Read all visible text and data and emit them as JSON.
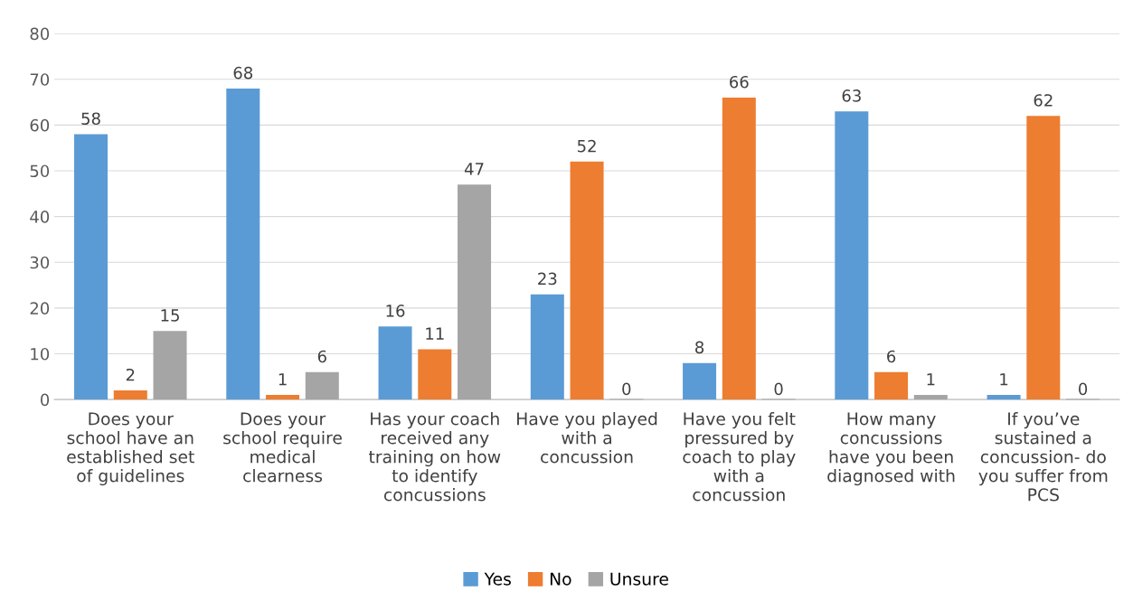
{
  "chart_data": {
    "type": "bar",
    "categories": [
      "Does your\nschool have an\nestablished set\nof guidelines",
      "Does your\nschool require\nmedical\nclearness",
      "Has your coach\nreceived any\ntraining on how\nto identify\nconcussions",
      "Have you played\nwith a\nconcussion",
      "Have you felt\npressured by\ncoach to play\nwith a\nconcussion",
      "How many\nconcussions\nhave you been\ndiagnosed with",
      "If you’ve\nsustained a\nconcussion- do\nyou suffer from\nPCS"
    ],
    "series": [
      {
        "name": "Yes",
        "color": "#5b9bd5",
        "values": [
          58,
          68,
          16,
          23,
          8,
          63,
          1
        ]
      },
      {
        "name": "No",
        "color": "#ed7d31",
        "values": [
          2,
          1,
          11,
          52,
          66,
          6,
          62
        ]
      },
      {
        "name": "Unsure",
        "color": "#a5a5a5",
        "values": [
          15,
          6,
          47,
          0,
          0,
          1,
          0
        ]
      }
    ],
    "ylim": [
      0,
      80
    ],
    "yticks": [
      0,
      10,
      20,
      30,
      40,
      50,
      60,
      70,
      80
    ],
    "grid": "y",
    "legend": "bottom",
    "data_labels": true
  }
}
